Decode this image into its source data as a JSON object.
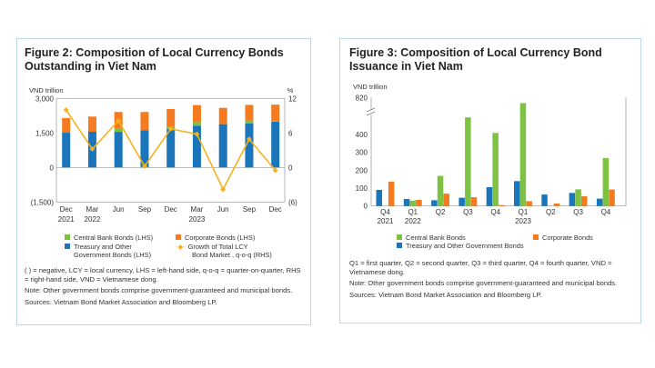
{
  "colors": {
    "central_bank": "#7dc242",
    "corporate": "#f47b20",
    "treasury": "#1a75bb",
    "growth": "#f6b21a",
    "grid": "#888888"
  },
  "chart_data": [
    {
      "type": "bar",
      "stacked": true,
      "title": "Figure 2: Composition of Local Currency Bonds Outstanding in Viet Nam",
      "ylabel": "VND trillion",
      "y2label": "%",
      "ylim": [
        -1500,
        3000
      ],
      "y2lim": [
        -6,
        12
      ],
      "yticks": [
        "3,000",
        "1,500",
        "0",
        "(1,500)"
      ],
      "y2ticks": [
        "12",
        "6",
        "0",
        "(6)"
      ],
      "categories": [
        [
          "Dec",
          "2021"
        ],
        [
          "Mar",
          "2022"
        ],
        [
          "Jun",
          ""
        ],
        [
          "Sep",
          ""
        ],
        [
          "Dec",
          ""
        ],
        [
          "Mar",
          "2023"
        ],
        [
          "Jun",
          ""
        ],
        [
          "Sep",
          ""
        ],
        [
          "Dec",
          ""
        ]
      ],
      "series": [
        {
          "name": "Treasury and Other Government Bonds (LHS)",
          "values": [
            1510,
            1550,
            1550,
            1620,
            1680,
            1820,
            1880,
            1920,
            1990
          ]
        },
        {
          "name": "Central Bank Bonds (LHS)",
          "values": [
            0,
            0,
            130,
            0,
            90,
            150,
            0,
            120,
            20
          ]
        },
        {
          "name": "Corporate Bonds (LHS)",
          "values": [
            640,
            660,
            730,
            790,
            770,
            740,
            710,
            680,
            720
          ]
        },
        {
          "name": "Growth of Total LCY Bond Market , q-o-q (RHS)",
          "type": "line",
          "axis": "right",
          "values": [
            10.0,
            3.2,
            8.1,
            0.2,
            6.7,
            5.8,
            -3.8,
            4.9,
            -0.5
          ]
        }
      ],
      "legend": [
        "Central Bank Bonds (LHS)",
        "Corporate Bonds (LHS)",
        "Treasury and Other",
        "Government Bonds (LHS)",
        "Growth of Total LCY",
        "Bond Market , q-o-q (RHS)"
      ],
      "notes": [
        "( ) = negative, LCY = local currency, LHS = left-hand side, q-o-q = quarter-on-quarter, RHS = right-hand side, VND = Vietnamese dong.",
        "Note: Other government bonds comprise government-guaranteed and municipal bonds.",
        "Sources: Vietnam Bond Market Association and Bloomberg LP."
      ]
    },
    {
      "type": "bar",
      "title": "Figure 3: Composition of Local Currency Bond Issuance in Viet Nam",
      "ylabel": "VND trillion",
      "ylim": [
        0,
        820
      ],
      "axis_break": true,
      "yticks": [
        "820",
        "400",
        "300",
        "200",
        "100",
        "0"
      ],
      "categories": [
        [
          "Q4",
          "2021"
        ],
        [
          "Q1",
          "2022"
        ],
        [
          "Q2",
          ""
        ],
        [
          "Q3",
          ""
        ],
        [
          "Q4",
          ""
        ],
        [
          "Q1",
          "2023"
        ],
        [
          "Q2",
          ""
        ],
        [
          "Q3",
          ""
        ],
        [
          "Q4",
          ""
        ]
      ],
      "series": [
        {
          "name": "Treasury and Other Government Bonds",
          "values": [
            90,
            39,
            32,
            46,
            105,
            139,
            64,
            73,
            41
          ]
        },
        {
          "name": "Central Bank Bonds",
          "values": [
            0,
            30,
            168,
            495,
            408,
            725,
            0,
            93,
            268
          ]
        },
        {
          "name": "Corporate Bonds",
          "values": [
            136,
            34,
            69,
            49,
            5,
            27,
            14,
            54,
            92
          ]
        }
      ],
      "legend": [
        "Central Bank Bonds",
        "Corporate Bonds",
        "Treasury and Other Government Bonds"
      ],
      "notes": [
        "Q1 = first quarter, Q2 = second quarter, Q3 = third quarter, Q4 = fourth quarter, VND = Vietnamese dong.",
        "Note: Other government bonds comprise government-guaranteed and municipal bonds.",
        "Sources: Vietnam Bond Market Association and Bloomberg LP."
      ]
    }
  ]
}
